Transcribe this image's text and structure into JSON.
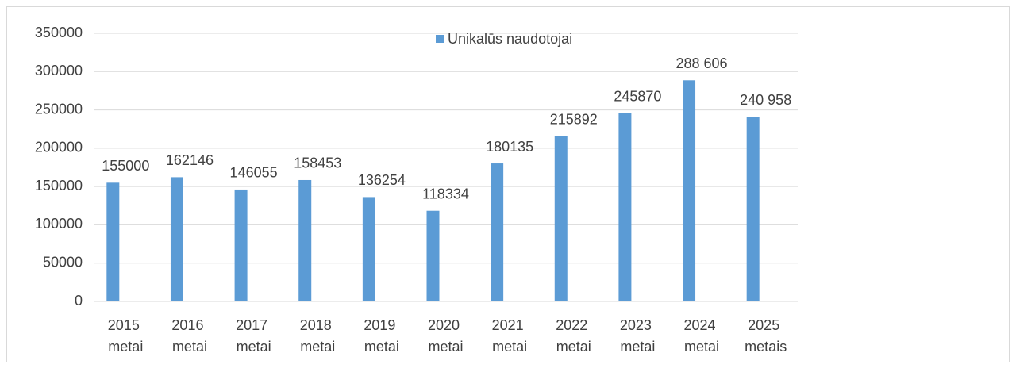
{
  "chart_data": {
    "type": "bar",
    "categories": [
      "2015 metai",
      "2016 metai",
      "2017 metai",
      "2018 metai",
      "2019 metai",
      "2020 metai",
      "2021 metai",
      "2022 metai",
      "2023 metai",
      "2024 metai",
      "2025 metais"
    ],
    "series": [
      {
        "name": "Unikalūs naudotojai",
        "color": "#5b9bd5",
        "values": [
          155000,
          162146,
          146055,
          158453,
          136254,
          118334,
          180135,
          215892,
          245870,
          288606,
          240958
        ],
        "value_labels": [
          "155000",
          "162146",
          "146055",
          "158453",
          "136254",
          "118334",
          "180135",
          "215892",
          "245870",
          "288 606",
          "240 958"
        ]
      }
    ],
    "ylim": [
      0,
      350000
    ],
    "yticks": [
      0,
      50000,
      100000,
      150000,
      200000,
      250000,
      300000,
      350000
    ],
    "grid": true,
    "legend": "top"
  }
}
